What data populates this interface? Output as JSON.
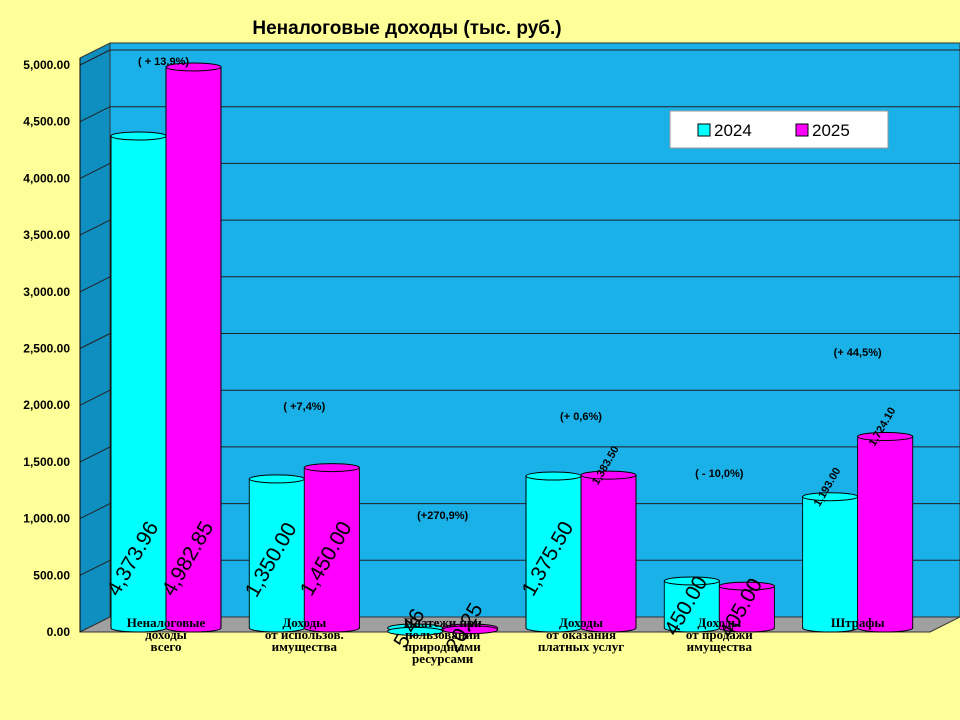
{
  "chart_data": {
    "type": "bar",
    "title": "Неналоговые доходы (тыс. руб.)",
    "categories": [
      [
        "Неналоговые",
        "доходы",
        "всего"
      ],
      [
        "Доходы",
        "от использов.",
        "имущества"
      ],
      [
        "Платежи при",
        "пользовании",
        "природными",
        "ресурсами"
      ],
      [
        "Доходы",
        "от оказания",
        "платных услуг"
      ],
      [
        "Доходы",
        "от продажи",
        "имущества"
      ],
      [
        "Штрафы"
      ]
    ],
    "series": [
      {
        "name": "2024",
        "color": "#00ffff",
        "values": [
          4373.96,
          1350.0,
          5.46,
          1375.5,
          450.0,
          1193.0
        ],
        "labels": [
          "4,373.96",
          "1,350.00",
          "5.46",
          "1,375.50",
          "450.00",
          "1,193.00"
        ]
      },
      {
        "name": "2025",
        "color": "#ff00ff",
        "values": [
          4982.85,
          1450.0,
          20.25,
          1383.5,
          405.0,
          1724.1
        ],
        "labels": [
          "4,982.85",
          "1,450.00",
          "20.25",
          "1,383.50",
          "405.00",
          "1,724.10"
        ]
      }
    ],
    "annotations": [
      "( + 13,9%)",
      "( +7,4%)",
      "(+270,9%)",
      "(+ 0,6%)",
      "( - 10,0%)",
      "(+ 44,5%)"
    ],
    "ylim": [
      0,
      5000
    ],
    "yticks": [
      0,
      500,
      1000,
      1500,
      2000,
      2500,
      3000,
      3500,
      4000,
      4500,
      5000
    ],
    "ytick_labels": [
      "0.00",
      "500.00",
      "1,000.00",
      "1,500.00",
      "2,000.00",
      "2,500.00",
      "3,000.00",
      "3,500.00",
      "4,000.00",
      "4,500.00",
      "5,000.00"
    ],
    "grid": true,
    "legend_position": "top-right",
    "background_color": "#1ab0e8",
    "page_color": "#ffff99"
  }
}
